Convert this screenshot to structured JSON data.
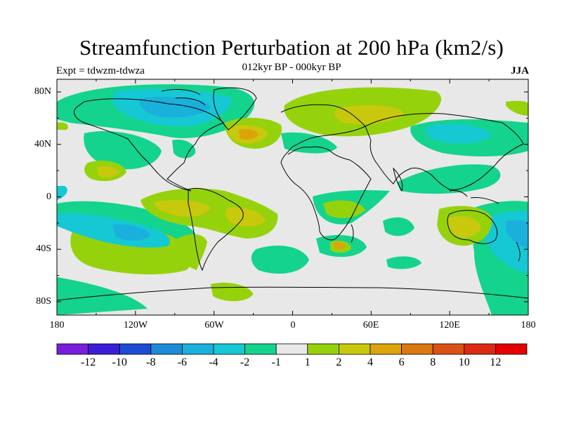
{
  "figure": {
    "title": "Streamfunction Perturbation at 200 hPa (km2/s)",
    "subtitle": "012kyr BP - 000kyr BP",
    "experiment": "Expt = tdwzm-tdwza",
    "season": "JJA"
  },
  "axes": {
    "lat_labels": [
      "80N",
      "40N",
      "0",
      "40S",
      "80S"
    ],
    "lon_labels": [
      "180",
      "120W",
      "60W",
      "0",
      "60E",
      "120E",
      "180"
    ]
  },
  "colorbar": {
    "labels": [
      "-12",
      "-10",
      "-8",
      "-6",
      "-4",
      "-2",
      "-1",
      "1",
      "2",
      "4",
      "6",
      "8",
      "10",
      "12"
    ],
    "colors": [
      "#7a1cdc",
      "#3d1cd8",
      "#1c4cd4",
      "#1e8ad8",
      "#1ab0dc",
      "#16c8d4",
      "#14d38d",
      "#e8e8e8",
      "#96d20c",
      "#c8c80c",
      "#dca40c",
      "#dc7812",
      "#dc5014",
      "#dc2814",
      "#e60000"
    ]
  }
}
